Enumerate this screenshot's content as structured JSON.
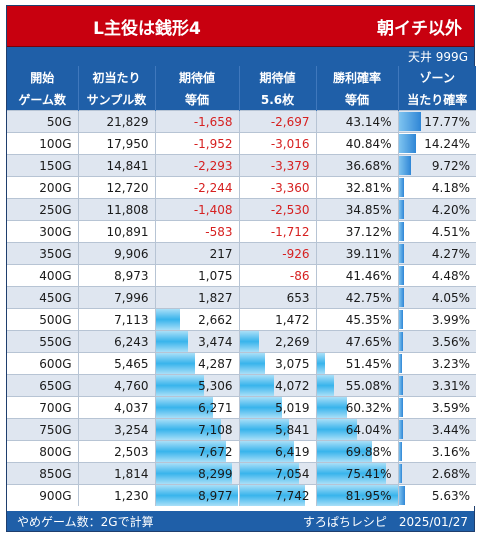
{
  "title": {
    "left": "L主役は銭形4",
    "right": "朝イチ以外"
  },
  "subtitle": "天井 999G",
  "headers": [
    [
      "開始",
      "ゲーム数"
    ],
    [
      "初当たり",
      "サンプル数"
    ],
    [
      "期待値",
      "等価"
    ],
    [
      "期待値",
      "5.6枚"
    ],
    [
      "勝利確率",
      "等価"
    ],
    [
      "ゾーン",
      "当たり確率"
    ]
  ],
  "rows": [
    [
      "50G",
      "21,829",
      "-1,658",
      "-2,697",
      "43.14%",
      "17.77%"
    ],
    [
      "100G",
      "17,950",
      "-1,952",
      "-3,016",
      "40.84%",
      "14.24%"
    ],
    [
      "150G",
      "14,841",
      "-2,293",
      "-3,379",
      "36.68%",
      "9.72%"
    ],
    [
      "200G",
      "12,720",
      "-2,244",
      "-3,360",
      "32.81%",
      "4.18%"
    ],
    [
      "250G",
      "11,808",
      "-1,408",
      "-2,530",
      "34.85%",
      "4.20%"
    ],
    [
      "300G",
      "10,891",
      "-583",
      "-1,712",
      "37.12%",
      "4.51%"
    ],
    [
      "350G",
      "9,906",
      "217",
      "-926",
      "39.11%",
      "4.27%"
    ],
    [
      "400G",
      "8,973",
      "1,075",
      "-86",
      "41.46%",
      "4.48%"
    ],
    [
      "450G",
      "7,996",
      "1,827",
      "653",
      "42.75%",
      "4.05%"
    ],
    [
      "500G",
      "7,113",
      "2,662",
      "1,472",
      "45.35%",
      "3.99%"
    ],
    [
      "550G",
      "6,243",
      "3,474",
      "2,269",
      "47.65%",
      "3.56%"
    ],
    [
      "600G",
      "5,465",
      "4,287",
      "3,075",
      "51.45%",
      "3.23%"
    ],
    [
      "650G",
      "4,760",
      "5,306",
      "4,072",
      "55.08%",
      "3.31%"
    ],
    [
      "700G",
      "4,037",
      "6,271",
      "5,019",
      "60.32%",
      "3.59%"
    ],
    [
      "750G",
      "3,254",
      "7,108",
      "5,841",
      "64.04%",
      "3.44%"
    ],
    [
      "800G",
      "2,503",
      "7,672",
      "6,419",
      "69.88%",
      "3.16%"
    ],
    [
      "850G",
      "1,814",
      "8,299",
      "7,054",
      "75.41%",
      "2.68%"
    ],
    [
      "900G",
      "1,230",
      "8,977",
      "7,742",
      "81.95%",
      "5.63%"
    ]
  ],
  "footer": {
    "left": "やめゲーム数：2Gで計算",
    "right": "すろぱちレシピ　2025/01/27"
  },
  "colors": {
    "title_bg": "#c8000f",
    "header_bg": "#1f5fa8",
    "negative": "#d62020",
    "bar": "#38b4ec"
  }
}
